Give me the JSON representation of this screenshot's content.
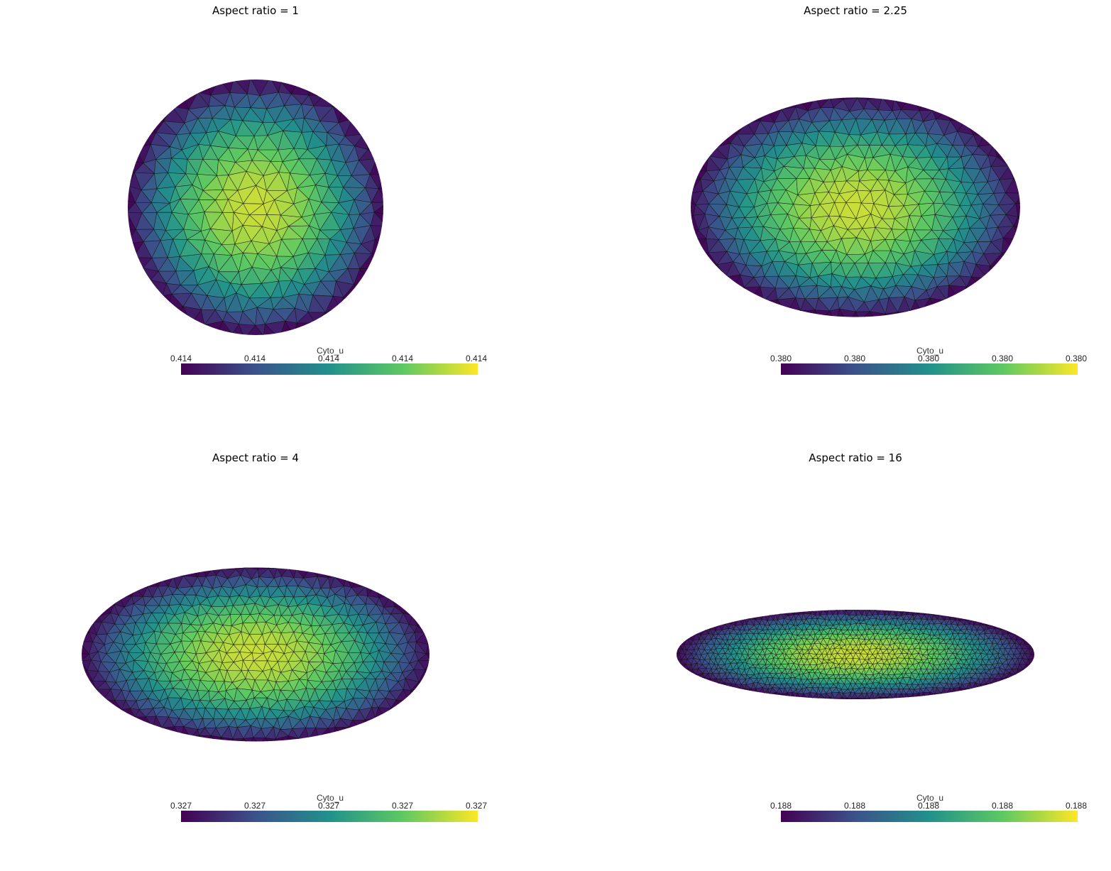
{
  "chart_data": [
    {
      "type": "heatmap",
      "title": "Aspect ratio = 1",
      "aspect_ratio": 1,
      "colorbar": {
        "title": "Cyto_u",
        "ticks": [
          "0.414",
          "0.414",
          "0.414",
          "0.414",
          "0.414"
        ]
      },
      "colormap": "viridis",
      "legend": "bottom"
    },
    {
      "type": "heatmap",
      "title": "Aspect ratio = 2.25",
      "aspect_ratio": 2.25,
      "colorbar": {
        "title": "Cyto_u",
        "ticks": [
          "0.380",
          "0.380",
          "0.380",
          "0.380",
          "0.380"
        ]
      },
      "colormap": "viridis",
      "legend": "bottom"
    },
    {
      "type": "heatmap",
      "title": "Aspect ratio = 4",
      "aspect_ratio": 4,
      "colorbar": {
        "title": "Cyto_u",
        "ticks": [
          "0.327",
          "0.327",
          "0.327",
          "0.327",
          "0.327"
        ]
      },
      "colormap": "viridis",
      "legend": "bottom"
    },
    {
      "type": "heatmap",
      "title": "Aspect ratio = 16",
      "aspect_ratio": 16,
      "colorbar": {
        "title": "Cyto_u",
        "ticks": [
          "0.188",
          "0.188",
          "0.188",
          "0.188",
          "0.188"
        ]
      },
      "colormap": "viridis",
      "legend": "bottom"
    }
  ],
  "colors": {
    "viridis": [
      "#440154",
      "#3b528b",
      "#21918c",
      "#5ec962",
      "#fde725"
    ],
    "mesh_edge": "#111111"
  }
}
